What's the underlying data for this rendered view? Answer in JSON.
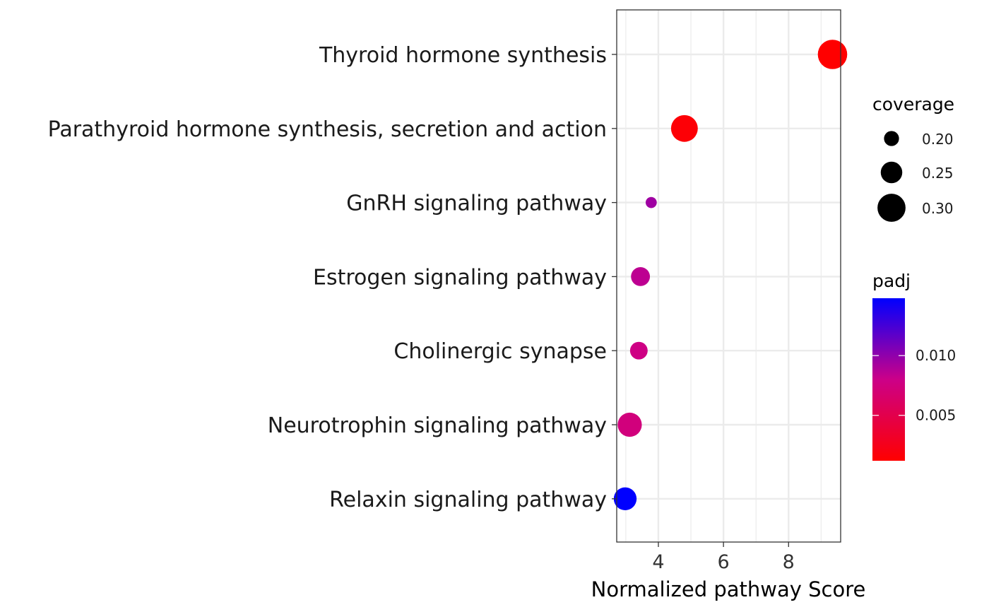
{
  "chart_data": {
    "type": "scatter",
    "title": "",
    "xlabel": "Normalized pathway Score",
    "ylabel": "",
    "xlim": [
      2.72,
      9.6
    ],
    "x_ticks": [
      4,
      6,
      8
    ],
    "x_tick_labels": [
      "4",
      "6",
      "8"
    ],
    "grid": true,
    "categories": [
      "Thyroid hormone synthesis",
      "Parathyroid hormone synthesis, secretion and action",
      "GnRH signaling pathway",
      "Estrogen signaling pathway",
      "Cholinergic synapse",
      "Neurotrophin signaling pathway",
      "Relaxin signaling pathway"
    ],
    "points": [
      {
        "category": "Thyroid hormone synthesis",
        "x": 9.35,
        "coverage": 0.31,
        "padj": 0.0012
      },
      {
        "category": "Parathyroid hormone synthesis, secretion and action",
        "x": 4.8,
        "coverage": 0.29,
        "padj": 0.0015
      },
      {
        "category": "GnRH signaling pathway",
        "x": 3.78,
        "coverage": 0.17,
        "padj": 0.0095
      },
      {
        "category": "Estrogen signaling pathway",
        "x": 3.45,
        "coverage": 0.23,
        "padj": 0.0085
      },
      {
        "category": "Cholinergic synapse",
        "x": 3.4,
        "coverage": 0.22,
        "padj": 0.0078
      },
      {
        "category": "Neurotrophin signaling pathway",
        "x": 3.12,
        "coverage": 0.27,
        "padj": 0.0074
      },
      {
        "category": "Relaxin signaling pathway",
        "x": 2.98,
        "coverage": 0.26,
        "padj": 0.0148
      }
    ],
    "size_legend": {
      "title": "coverage",
      "values": [
        0.2,
        0.25,
        0.3
      ],
      "labels": [
        "0.20",
        "0.25",
        "0.30"
      ]
    },
    "color_legend": {
      "title": "padj",
      "range": [
        0.0012,
        0.0148
      ],
      "ticks": [
        0.01,
        0.005
      ],
      "tick_labels": [
        "0.010",
        "0.005"
      ],
      "low_color": "#ff0000",
      "high_color": "#0000ff"
    },
    "legend_position": "right"
  }
}
